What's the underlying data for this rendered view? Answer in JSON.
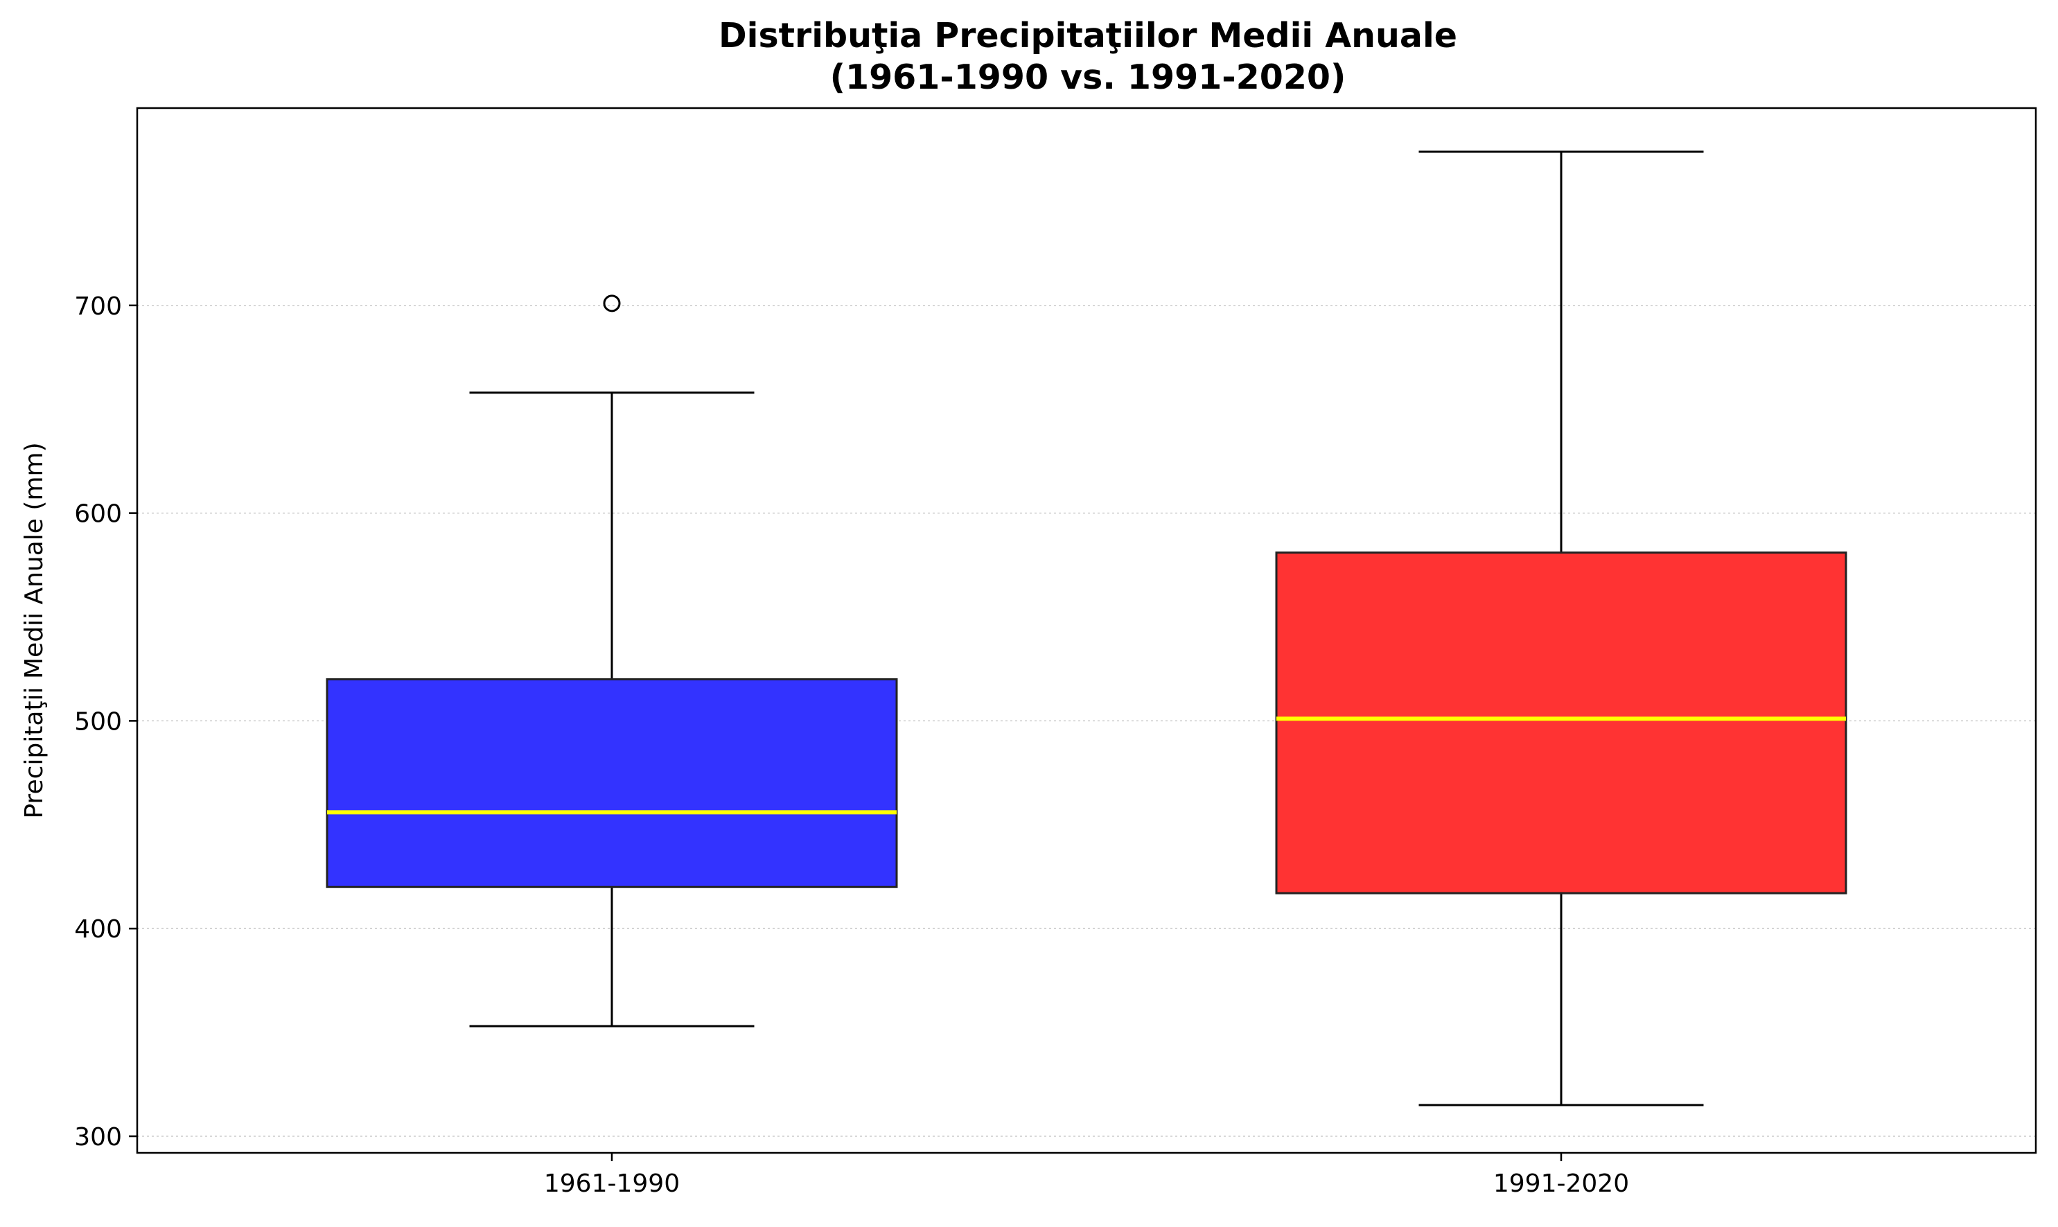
{
  "chart_data": {
    "type": "box",
    "title": "Distribuţia Precipitaţiilor Medii Anuale",
    "subtitle": "(1961-1990 vs. 1991-2020)",
    "xlabel": "",
    "ylabel": "Precipitaţii Medii Anuale (mm)",
    "categories": [
      "1961-1990",
      "1991-2020"
    ],
    "ylim": [
      292,
      795
    ],
    "yticks": [
      300,
      400,
      500,
      600,
      700
    ],
    "grid": "horizontal-dotted",
    "boxes": [
      {
        "category": "1961-1990",
        "whisker_low": 353,
        "q1": 420,
        "median": 456,
        "q3": 520,
        "whisker_high": 658,
        "outliers": [
          701
        ],
        "color": "#3333ff"
      },
      {
        "category": "1991-2020",
        "whisker_low": 315,
        "q1": 417,
        "median": 501,
        "q3": 581,
        "whisker_high": 774,
        "outliers": [],
        "color": "#ff3333"
      }
    ],
    "median_color": "#ffff00"
  }
}
